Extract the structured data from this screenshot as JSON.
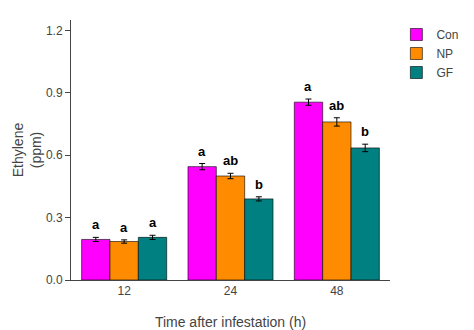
{
  "chart_data": {
    "type": "bar",
    "xlabel": "Time after infestation (h)",
    "ylabel": "Ethylene\n(ppm)",
    "categories": [
      "12",
      "24",
      "48"
    ],
    "series": [
      {
        "name": "Con",
        "color": "#FF00FF",
        "values": [
          0.195,
          0.545,
          0.855
        ],
        "errors": [
          0.01,
          0.015,
          0.015
        ],
        "annotations": [
          "a",
          "a",
          "a"
        ]
      },
      {
        "name": "NP",
        "color": "#FF8C00",
        "values": [
          0.185,
          0.5,
          0.76
        ],
        "errors": [
          0.008,
          0.013,
          0.02
        ],
        "annotations": [
          "a",
          "ab",
          "ab"
        ]
      },
      {
        "name": "GF",
        "color": "#008080",
        "values": [
          0.205,
          0.39,
          0.635
        ],
        "errors": [
          0.01,
          0.01,
          0.018
        ],
        "annotations": [
          "a",
          "b",
          "b"
        ]
      }
    ],
    "ylim": [
      0.0,
      1.25
    ],
    "yticks": [
      {
        "value": 0.0,
        "label": "0.0"
      },
      0.3,
      0.6,
      0.9,
      1.2
    ],
    "grid": false,
    "legend": "upper right"
  }
}
